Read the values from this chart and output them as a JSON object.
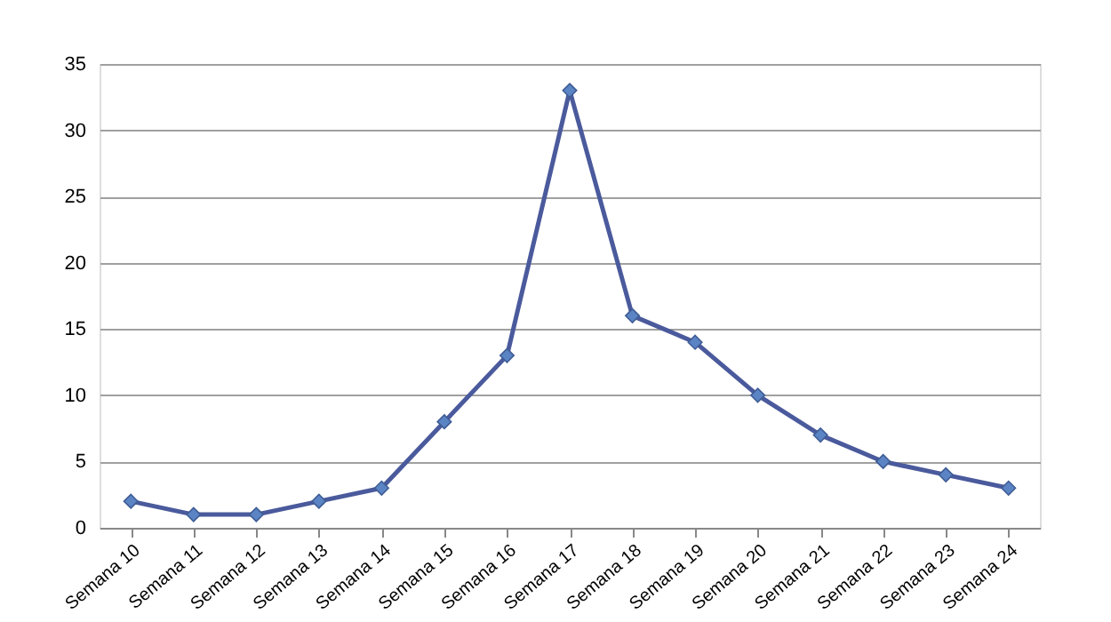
{
  "chart_data": {
    "type": "line",
    "categories": [
      "Semana 10",
      "Semana 11",
      "Semana 12",
      "Semana 13",
      "Semana 14",
      "Semana 15",
      "Semana 16",
      "Semana 17",
      "Semana 18",
      "Semana 19",
      "Semana 20",
      "Semana 21",
      "Semana 22",
      "Semana 23",
      "Semana 24"
    ],
    "series": [
      {
        "color": "#4a5a9c",
        "values": [
          2,
          1,
          1,
          2,
          3,
          8,
          13,
          33,
          16,
          14,
          10,
          7,
          5,
          4,
          3
        ]
      }
    ],
    "ylim": [
      0,
      35
    ],
    "yticks": [
      0,
      5,
      10,
      15,
      20,
      25,
      30,
      35
    ],
    "grid": "y",
    "marker": "diamond",
    "line_style": "solid"
  }
}
